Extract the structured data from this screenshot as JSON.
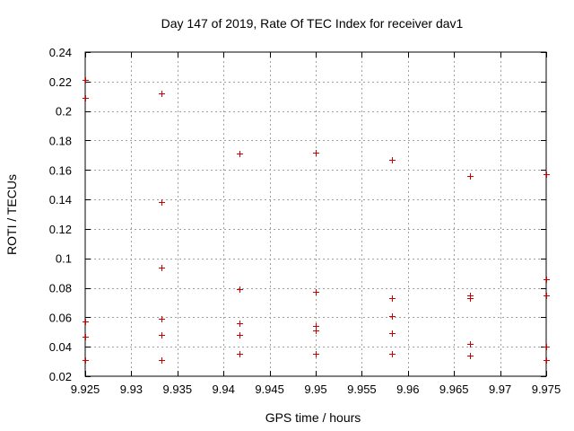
{
  "chart_data": {
    "type": "scatter",
    "title": "Day 147 of 2019, Rate Of TEC Index for receiver dav1",
    "xlabel": "GPS time / hours",
    "ylabel": "ROTI / TECUs",
    "xlim": [
      9.925,
      9.975
    ],
    "ylim": [
      0.02,
      0.24
    ],
    "xticks": [
      9.925,
      9.93,
      9.935,
      9.94,
      9.945,
      9.95,
      9.955,
      9.96,
      9.965,
      9.97,
      9.975
    ],
    "xtick_labels": [
      "9.925",
      "9.93",
      "9.935",
      "9.94",
      "9.945",
      "9.95",
      "9.955",
      "9.96",
      "9.965",
      "9.97",
      "9.975"
    ],
    "yticks": [
      0.02,
      0.04,
      0.06,
      0.08,
      0.1,
      0.12,
      0.14,
      0.16,
      0.18,
      0.2,
      0.22,
      0.24
    ],
    "ytick_labels": [
      "0.02",
      "0.04",
      "0.06",
      "0.08",
      "0.1",
      "0.12",
      "0.14",
      "0.16",
      "0.18",
      "0.2",
      "0.22",
      "0.24"
    ],
    "grid": true,
    "marker": "+",
    "marker_color": "#cc0000",
    "series": [
      {
        "name": "dav1",
        "points": [
          {
            "x": 9.925,
            "y": 0.221
          },
          {
            "x": 9.925,
            "y": 0.209
          },
          {
            "x": 9.925,
            "y": 0.057
          },
          {
            "x": 9.925,
            "y": 0.047
          },
          {
            "x": 9.925,
            "y": 0.031
          },
          {
            "x": 9.9333,
            "y": 0.212
          },
          {
            "x": 9.9333,
            "y": 0.138
          },
          {
            "x": 9.9333,
            "y": 0.094
          },
          {
            "x": 9.9333,
            "y": 0.059
          },
          {
            "x": 9.9333,
            "y": 0.048
          },
          {
            "x": 9.9333,
            "y": 0.031
          },
          {
            "x": 9.9417,
            "y": 0.171
          },
          {
            "x": 9.9417,
            "y": 0.079
          },
          {
            "x": 9.9417,
            "y": 0.056
          },
          {
            "x": 9.9417,
            "y": 0.048
          },
          {
            "x": 9.9417,
            "y": 0.035
          },
          {
            "x": 9.95,
            "y": 0.172
          },
          {
            "x": 9.95,
            "y": 0.077
          },
          {
            "x": 9.95,
            "y": 0.054
          },
          {
            "x": 9.95,
            "y": 0.051
          },
          {
            "x": 9.95,
            "y": 0.035
          },
          {
            "x": 9.9583,
            "y": 0.167
          },
          {
            "x": 9.9583,
            "y": 0.073
          },
          {
            "x": 9.9583,
            "y": 0.061
          },
          {
            "x": 9.9583,
            "y": 0.049
          },
          {
            "x": 9.9583,
            "y": 0.035
          },
          {
            "x": 9.9667,
            "y": 0.156
          },
          {
            "x": 9.9667,
            "y": 0.075
          },
          {
            "x": 9.9667,
            "y": 0.073
          },
          {
            "x": 9.9667,
            "y": 0.042
          },
          {
            "x": 9.9667,
            "y": 0.034
          },
          {
            "x": 9.975,
            "y": 0.157
          },
          {
            "x": 9.975,
            "y": 0.086
          },
          {
            "x": 9.975,
            "y": 0.075
          },
          {
            "x": 9.975,
            "y": 0.04
          },
          {
            "x": 9.975,
            "y": 0.031
          }
        ]
      }
    ]
  }
}
